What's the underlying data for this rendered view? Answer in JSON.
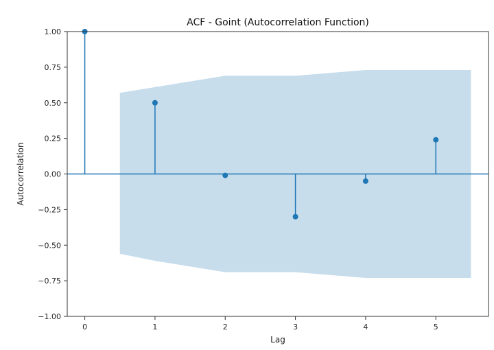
{
  "chart_data": {
    "type": "stem",
    "title": "ACF - Goint (Autocorrelation Function)",
    "xlabel": "Lag",
    "ylabel": "Autocorrelation",
    "lags": [
      0,
      1,
      2,
      3,
      4,
      5
    ],
    "values": [
      1.0,
      0.5,
      -0.01,
      -0.3,
      -0.05,
      0.24
    ],
    "confidence_interval": {
      "x": [
        0.5,
        1,
        2,
        3,
        4,
        5,
        5.5
      ],
      "upper": [
        0.57,
        0.61,
        0.69,
        0.69,
        0.73,
        0.73,
        0.73
      ],
      "lower": [
        -0.56,
        -0.61,
        -0.69,
        -0.69,
        -0.73,
        -0.73,
        -0.73
      ]
    },
    "xlim": [
      -0.25,
      5.75
    ],
    "ylim": [
      -1.0,
      1.0
    ],
    "xticks": [
      "0",
      "1",
      "2",
      "3",
      "4",
      "5"
    ],
    "yticks": [
      "1.00",
      "0.75",
      "0.50",
      "0.25",
      "0.00",
      "−0.25",
      "−0.50",
      "−0.75",
      "−1.00"
    ],
    "grid": false,
    "colors": {
      "stem": "#1f77b4",
      "band": "#1f77b4",
      "band_opacity": 0.25,
      "axes": "#333333"
    }
  }
}
